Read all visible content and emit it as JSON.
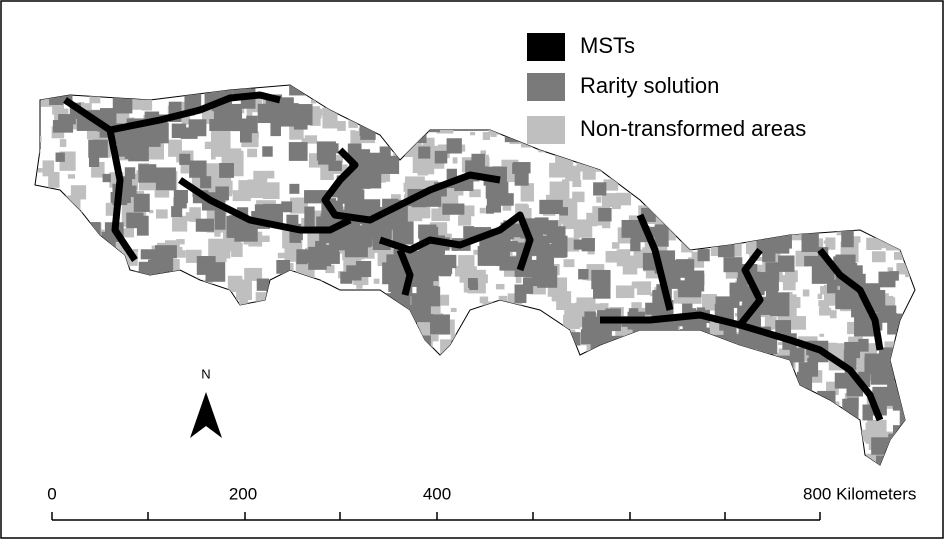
{
  "legend": {
    "items": [
      {
        "label": "MSTs",
        "color": "#000000"
      },
      {
        "label": "Rarity solution",
        "color": "#7a7a7a"
      },
      {
        "label": "Non-transformed areas",
        "color": "#bfbfbf"
      }
    ]
  },
  "north_arrow": {
    "label": "N"
  },
  "scale_bar": {
    "labels": [
      "0",
      "200",
      "400",
      "800 Kilometers"
    ]
  }
}
